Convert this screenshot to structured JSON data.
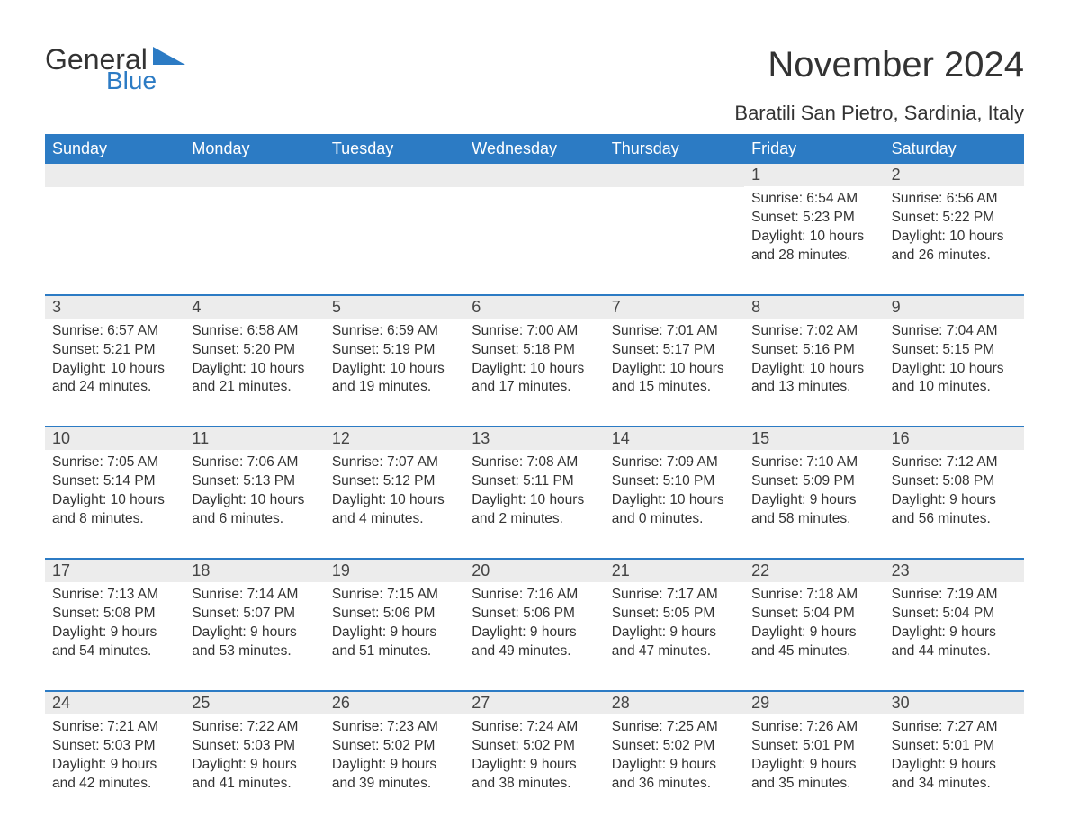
{
  "logo": {
    "word1": "General",
    "word2": "Blue"
  },
  "title": "November 2024",
  "location": "Baratili San Pietro, Sardinia, Italy",
  "colors": {
    "header_bg": "#2c7bc4",
    "header_text": "#ffffff",
    "daynum_bg": "#ececec",
    "body_text": "#333333",
    "divider": "#2c7bc4",
    "page_bg": "#ffffff"
  },
  "dow": [
    "Sunday",
    "Monday",
    "Tuesday",
    "Wednesday",
    "Thursday",
    "Friday",
    "Saturday"
  ],
  "weeks": [
    [
      null,
      null,
      null,
      null,
      null,
      {
        "n": "1",
        "sunrise": "Sunrise: 6:54 AM",
        "sunset": "Sunset: 5:23 PM",
        "d1": "Daylight: 10 hours",
        "d2": "and 28 minutes."
      },
      {
        "n": "2",
        "sunrise": "Sunrise: 6:56 AM",
        "sunset": "Sunset: 5:22 PM",
        "d1": "Daylight: 10 hours",
        "d2": "and 26 minutes."
      }
    ],
    [
      {
        "n": "3",
        "sunrise": "Sunrise: 6:57 AM",
        "sunset": "Sunset: 5:21 PM",
        "d1": "Daylight: 10 hours",
        "d2": "and 24 minutes."
      },
      {
        "n": "4",
        "sunrise": "Sunrise: 6:58 AM",
        "sunset": "Sunset: 5:20 PM",
        "d1": "Daylight: 10 hours",
        "d2": "and 21 minutes."
      },
      {
        "n": "5",
        "sunrise": "Sunrise: 6:59 AM",
        "sunset": "Sunset: 5:19 PM",
        "d1": "Daylight: 10 hours",
        "d2": "and 19 minutes."
      },
      {
        "n": "6",
        "sunrise": "Sunrise: 7:00 AM",
        "sunset": "Sunset: 5:18 PM",
        "d1": "Daylight: 10 hours",
        "d2": "and 17 minutes."
      },
      {
        "n": "7",
        "sunrise": "Sunrise: 7:01 AM",
        "sunset": "Sunset: 5:17 PM",
        "d1": "Daylight: 10 hours",
        "d2": "and 15 minutes."
      },
      {
        "n": "8",
        "sunrise": "Sunrise: 7:02 AM",
        "sunset": "Sunset: 5:16 PM",
        "d1": "Daylight: 10 hours",
        "d2": "and 13 minutes."
      },
      {
        "n": "9",
        "sunrise": "Sunrise: 7:04 AM",
        "sunset": "Sunset: 5:15 PM",
        "d1": "Daylight: 10 hours",
        "d2": "and 10 minutes."
      }
    ],
    [
      {
        "n": "10",
        "sunrise": "Sunrise: 7:05 AM",
        "sunset": "Sunset: 5:14 PM",
        "d1": "Daylight: 10 hours",
        "d2": "and 8 minutes."
      },
      {
        "n": "11",
        "sunrise": "Sunrise: 7:06 AM",
        "sunset": "Sunset: 5:13 PM",
        "d1": "Daylight: 10 hours",
        "d2": "and 6 minutes."
      },
      {
        "n": "12",
        "sunrise": "Sunrise: 7:07 AM",
        "sunset": "Sunset: 5:12 PM",
        "d1": "Daylight: 10 hours",
        "d2": "and 4 minutes."
      },
      {
        "n": "13",
        "sunrise": "Sunrise: 7:08 AM",
        "sunset": "Sunset: 5:11 PM",
        "d1": "Daylight: 10 hours",
        "d2": "and 2 minutes."
      },
      {
        "n": "14",
        "sunrise": "Sunrise: 7:09 AM",
        "sunset": "Sunset: 5:10 PM",
        "d1": "Daylight: 10 hours",
        "d2": "and 0 minutes."
      },
      {
        "n": "15",
        "sunrise": "Sunrise: 7:10 AM",
        "sunset": "Sunset: 5:09 PM",
        "d1": "Daylight: 9 hours",
        "d2": "and 58 minutes."
      },
      {
        "n": "16",
        "sunrise": "Sunrise: 7:12 AM",
        "sunset": "Sunset: 5:08 PM",
        "d1": "Daylight: 9 hours",
        "d2": "and 56 minutes."
      }
    ],
    [
      {
        "n": "17",
        "sunrise": "Sunrise: 7:13 AM",
        "sunset": "Sunset: 5:08 PM",
        "d1": "Daylight: 9 hours",
        "d2": "and 54 minutes."
      },
      {
        "n": "18",
        "sunrise": "Sunrise: 7:14 AM",
        "sunset": "Sunset: 5:07 PM",
        "d1": "Daylight: 9 hours",
        "d2": "and 53 minutes."
      },
      {
        "n": "19",
        "sunrise": "Sunrise: 7:15 AM",
        "sunset": "Sunset: 5:06 PM",
        "d1": "Daylight: 9 hours",
        "d2": "and 51 minutes."
      },
      {
        "n": "20",
        "sunrise": "Sunrise: 7:16 AM",
        "sunset": "Sunset: 5:06 PM",
        "d1": "Daylight: 9 hours",
        "d2": "and 49 minutes."
      },
      {
        "n": "21",
        "sunrise": "Sunrise: 7:17 AM",
        "sunset": "Sunset: 5:05 PM",
        "d1": "Daylight: 9 hours",
        "d2": "and 47 minutes."
      },
      {
        "n": "22",
        "sunrise": "Sunrise: 7:18 AM",
        "sunset": "Sunset: 5:04 PM",
        "d1": "Daylight: 9 hours",
        "d2": "and 45 minutes."
      },
      {
        "n": "23",
        "sunrise": "Sunrise: 7:19 AM",
        "sunset": "Sunset: 5:04 PM",
        "d1": "Daylight: 9 hours",
        "d2": "and 44 minutes."
      }
    ],
    [
      {
        "n": "24",
        "sunrise": "Sunrise: 7:21 AM",
        "sunset": "Sunset: 5:03 PM",
        "d1": "Daylight: 9 hours",
        "d2": "and 42 minutes."
      },
      {
        "n": "25",
        "sunrise": "Sunrise: 7:22 AM",
        "sunset": "Sunset: 5:03 PM",
        "d1": "Daylight: 9 hours",
        "d2": "and 41 minutes."
      },
      {
        "n": "26",
        "sunrise": "Sunrise: 7:23 AM",
        "sunset": "Sunset: 5:02 PM",
        "d1": "Daylight: 9 hours",
        "d2": "and 39 minutes."
      },
      {
        "n": "27",
        "sunrise": "Sunrise: 7:24 AM",
        "sunset": "Sunset: 5:02 PM",
        "d1": "Daylight: 9 hours",
        "d2": "and 38 minutes."
      },
      {
        "n": "28",
        "sunrise": "Sunrise: 7:25 AM",
        "sunset": "Sunset: 5:02 PM",
        "d1": "Daylight: 9 hours",
        "d2": "and 36 minutes."
      },
      {
        "n": "29",
        "sunrise": "Sunrise: 7:26 AM",
        "sunset": "Sunset: 5:01 PM",
        "d1": "Daylight: 9 hours",
        "d2": "and 35 minutes."
      },
      {
        "n": "30",
        "sunrise": "Sunrise: 7:27 AM",
        "sunset": "Sunset: 5:01 PM",
        "d1": "Daylight: 9 hours",
        "d2": "and 34 minutes."
      }
    ]
  ]
}
